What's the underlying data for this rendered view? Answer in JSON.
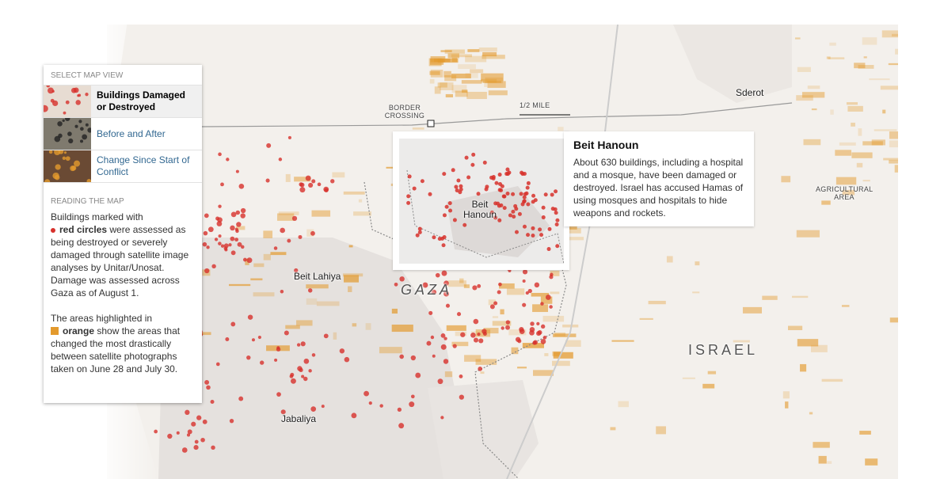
{
  "sidebar": {
    "select_title": "SELECT MAP VIEW",
    "options": [
      {
        "label": "Buildings Damaged or Destroyed",
        "selected": true
      },
      {
        "label": "Before and After",
        "selected": false
      },
      {
        "label": "Change Since Start of Conflict",
        "selected": false
      }
    ],
    "reading_title": "READING THE MAP",
    "paragraphs": [
      [
        "Buildings marked with",
        "red circles",
        "were assessed as being destroyed or severely damaged through satellite image analyses by Unitar/Unosat. Damage was assessed across Gaza as of August 1."
      ],
      [
        "The areas highlighted in",
        "orange",
        "show the areas that changed the most drastically between satellite photographs taken on June 28 and July 30."
      ]
    ]
  },
  "map": {
    "labels": {
      "sderot": "Sderot",
      "border_crossing": "BORDER CROSSING",
      "scale": "1/2 MILE",
      "agricultural_area": "AGRICULTURAL AREA",
      "beit_lahiya": "Beit Lahiya",
      "gaza": "GAZA",
      "israel": "ISRAEL",
      "jabaliya": "Jabaliya"
    },
    "callout": {
      "inset_label": "Beit Hanoun",
      "title": "Beit Hanoun",
      "text": "About 630 buildings, including a hospital and a mosque, have been damaged or destroyed. Israel has accused Hamas of using mosques and hospitals to hide weapons and rockets."
    }
  }
}
